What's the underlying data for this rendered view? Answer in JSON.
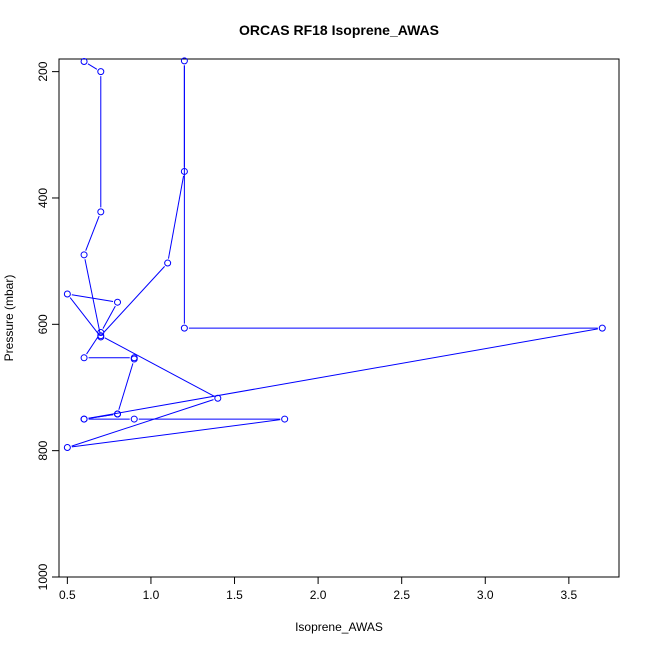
{
  "chart_data": {
    "type": "line",
    "title": "ORCAS RF18 Isoprene_AWAS",
    "xlabel": "Isoprene_AWAS",
    "ylabel": "Pressure (mbar)",
    "xlim": [
      0.45,
      3.8
    ],
    "ylim": [
      1000,
      180
    ],
    "y_reversed": true,
    "grid": false,
    "x_ticks": [
      0.5,
      1.0,
      1.5,
      2.0,
      2.5,
      3.0,
      3.5
    ],
    "x_tick_labels": [
      "0.5",
      "1.0",
      "1.5",
      "2.0",
      "2.5",
      "3.0",
      "3.5"
    ],
    "y_ticks": [
      200,
      400,
      600,
      800,
      1000
    ],
    "y_tick_labels": [
      "200",
      "400",
      "600",
      "800",
      "1000"
    ],
    "series": [
      {
        "color": "#0000ff",
        "marker": "open-circle",
        "x": [
          0.6,
          0.7,
          0.7,
          0.6,
          0.7,
          0.5,
          0.8,
          0.7,
          0.6,
          0.9,
          0.9,
          0.8,
          0.6,
          0.9,
          1.8,
          0.5,
          1.4,
          0.7,
          1.1,
          1.2,
          1.2,
          1.2,
          3.7,
          0.6,
          0.8
        ],
        "y": [
          184,
          200,
          422,
          490,
          620,
          552,
          565,
          613,
          653,
          653,
          655,
          742,
          750,
          750,
          750,
          795,
          717,
          618,
          503,
          358,
          183,
          606,
          606,
          750,
          742
        ]
      }
    ]
  }
}
